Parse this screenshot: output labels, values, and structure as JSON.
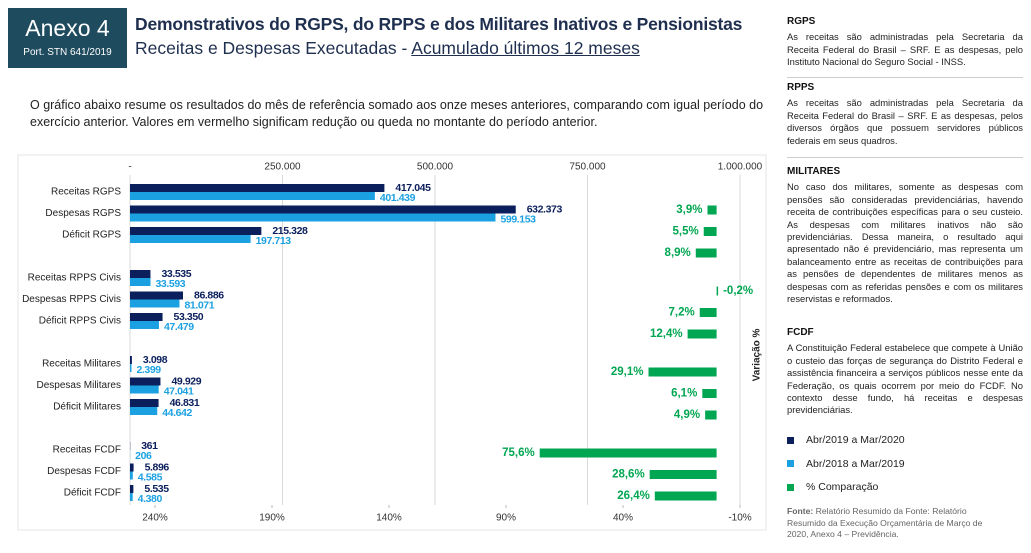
{
  "header": {
    "badge_title": "Anexo 4",
    "badge_subtitle": "Port. STN 641/2019",
    "title": "Demonstrativos do RGPS, do RPPS e dos Militares Inativos e Pensionistas",
    "subtitle_prefix": "Receitas e Despesas Executadas - ",
    "subtitle_underlined": "Acumulado últimos 12 meses",
    "intro": "O gráfico abaixo resume os resultados do mês de referência somado aos onze meses anteriores, comparando com igual período do exercício anterior. Valores em vermelho significam redução ou queda no montante do período anterior."
  },
  "chart_data": {
    "type": "bar",
    "orientation": "horizontal",
    "group_size": 3,
    "categories": [
      "Receitas RGPS",
      "Despesas RGPS",
      "Déficit RGPS",
      "Receitas RPPS Civis",
      "Despesas RPPS Civis",
      "Déficit RPPS Civis",
      "Receitas Militares",
      "Despesas Militares",
      "Déficit Militares",
      "Receitas FCDF",
      "Despesas FCDF",
      "Déficit FCDF"
    ],
    "series": [
      {
        "name": "Abr/2019 a Mar/2020",
        "color": "#0b1f5c",
        "values": [
          417045,
          632373,
          215328,
          33535,
          86886,
          53350,
          3098,
          49929,
          46831,
          361,
          5896,
          5535
        ],
        "value_labels": [
          "417.045",
          "632.373",
          "215.328",
          "33.535",
          "86.886",
          "53.350",
          "3.098",
          "49.929",
          "46.831",
          "361",
          "5.896",
          "5.535"
        ]
      },
      {
        "name": "Abr/2018 a Mar/2019",
        "color": "#1ba1e2",
        "values": [
          401439,
          599153,
          197713,
          33593,
          81071,
          47479,
          2399,
          47041,
          44642,
          206,
          4585,
          4380
        ],
        "value_labels": [
          "401.439",
          "599.153",
          "197.713",
          "33.593",
          "81.071",
          "47.479",
          "2.399",
          "47.041",
          "44.642",
          "206",
          "4.585",
          "4.380"
        ]
      },
      {
        "name": "% Comparação",
        "color": "#00a651",
        "axis": "x2",
        "values": [
          3.9,
          5.5,
          8.9,
          -0.2,
          7.2,
          12.4,
          29.1,
          6.1,
          4.9,
          75.6,
          28.6,
          26.4
        ],
        "value_labels": [
          "3,9%",
          "5,5%",
          "8,9%",
          "-0,2%",
          "7,2%",
          "12,4%",
          "29,1%",
          "6,1%",
          "4,9%",
          "75,6%",
          "28,6%",
          "26,4%"
        ]
      }
    ],
    "xlim": [
      0,
      1000000
    ],
    "xticks": [
      {
        "value": 0,
        "label": "-"
      },
      {
        "value": 250000,
        "label": "250.000"
      },
      {
        "value": 500000,
        "label": "500.000"
      },
      {
        "value": 750000,
        "label": "750.000"
      },
      {
        "value": 1000000,
        "label": "1.000.000"
      }
    ],
    "x2lim": [
      240,
      -10
    ],
    "x2ticks": [
      {
        "value": 240,
        "label": "240%"
      },
      {
        "value": 190,
        "label": "190%"
      },
      {
        "value": 140,
        "label": "140%"
      },
      {
        "value": 90,
        "label": "90%"
      },
      {
        "value": 40,
        "label": "40%"
      },
      {
        "value": -10,
        "label": "-10%"
      }
    ],
    "x2label": "Variação %",
    "grid": true
  },
  "sidebar": {
    "sections": [
      {
        "heading": "RGPS",
        "text": "As receitas são administradas pela Secretaria da Receita Federal do Brasil – SRF. E as despesas, pelo Instituto Nacional do Seguro Social - INSS."
      },
      {
        "heading": "RPPS",
        "text": "As receitas são administradas pela Secretaria da Receita Federal do Brasil – SRF. E as despesas, pelos diversos órgãos que possuem servidores públicos federais em seus quadros."
      },
      {
        "heading": "MILITARES",
        "text": "No caso dos militares, somente as despesas com pensões são consideradas previdenciárias, havendo receita de contribuições específicas para o seu custeio. As despesas com militares inativos não são previdenciárias. Dessa maneira, o resultado aqui apresentado não é previdenciário, mas representa um balanceamento entre as receitas de contribuições para as pensões de dependentes de militares menos as despesas com as referidas pensões e com os militares reservistas e reformados."
      },
      {
        "heading": "FCDF",
        "text": "A Constituição Federal estabelece que compete à União o custeio das forças de segurança do Distrito Federal e assistência financeira a serviços públicos nesse ente da Federação, os quais ocorrem por meio do FCDF. No contexto desse fundo, há receitas e despesas previdenciárias."
      }
    ],
    "source_label": "Fonte:",
    "source_text": "Relatório Resumido da Fonte: Relatório Resumido da Execução Orçamentária de Março de 2020, Anexo 4 – Previdência."
  }
}
